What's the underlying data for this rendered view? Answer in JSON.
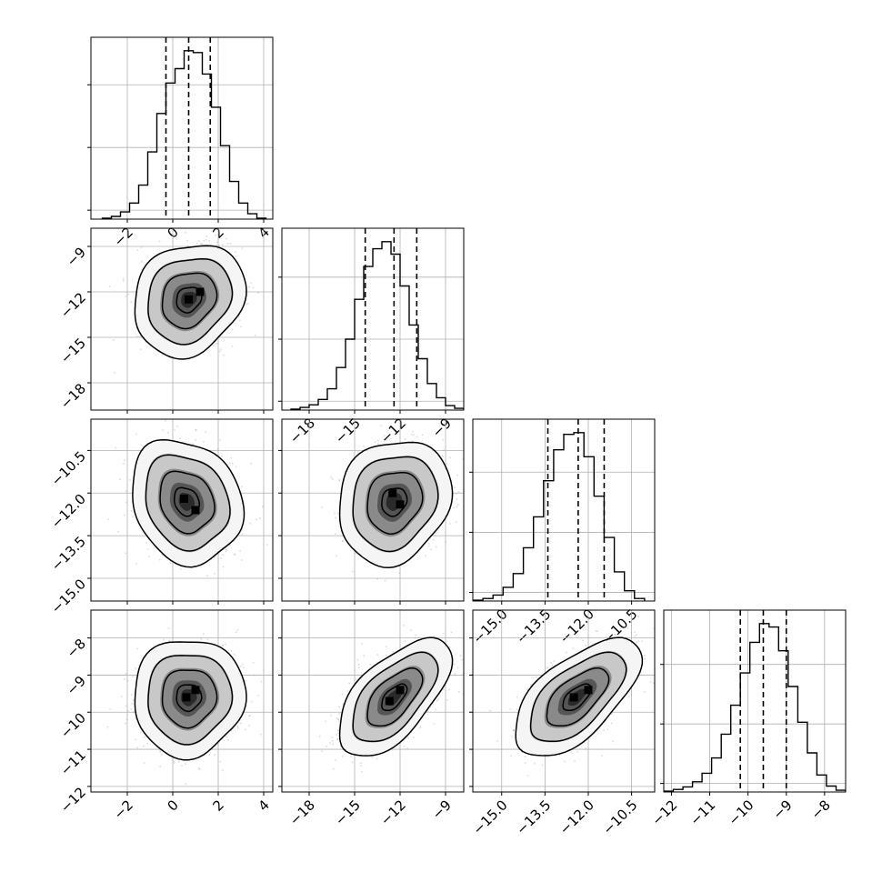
{
  "chart_data": [
    {
      "type": "histogram",
      "panel": [
        0,
        0
      ],
      "param": 0,
      "bins_x": [
        -3.1,
        -2.7,
        -2.3,
        -1.9,
        -1.5,
        -1.1,
        -0.7,
        -0.3,
        0.1,
        0.5,
        0.9,
        1.3,
        1.7,
        2.1,
        2.5,
        2.9,
        3.3,
        3.7,
        4.1
      ],
      "counts": [
        1,
        3,
        8,
        18,
        38,
        75,
        118,
        152,
        168,
        188,
        186,
        162,
        125,
        82,
        42,
        18,
        6,
        1
      ],
      "quantiles": [
        -0.3,
        0.7,
        1.65
      ],
      "xlim": [
        -3.6,
        4.4
      ],
      "xticks": [
        -2,
        0,
        2,
        4
      ],
      "xticklabels": [
        "−2",
        "0",
        "2",
        "4"
      ]
    },
    {
      "type": "scatter_density",
      "panel": [
        1,
        0
      ],
      "param_x": 0,
      "param_y": 1,
      "center": [
        0.7,
        -12.5
      ],
      "cov": [
        [
          1.0,
          0.25
        ],
        [
          0.25,
          2.3
        ]
      ],
      "n_scatter": 1500,
      "hotspots": [
        [
          0.7,
          -12.5
        ],
        [
          1.2,
          -12.0
        ]
      ],
      "xlim": [
        -3.6,
        4.4
      ],
      "ylim": [
        -19.8,
        -7.8
      ],
      "yticks": [
        -9,
        -12,
        -15,
        -18
      ],
      "yticklabels": [
        "−9",
        "−12",
        "−15",
        "−18"
      ]
    },
    {
      "type": "histogram",
      "panel": [
        1,
        1
      ],
      "param": 1,
      "bins_x": [
        -19.2,
        -18.6,
        -18.0,
        -17.4,
        -16.8,
        -16.2,
        -15.6,
        -15.0,
        -14.4,
        -13.8,
        -13.2,
        -12.6,
        -12.0,
        -11.4,
        -10.8,
        -10.2,
        -9.6,
        -9.0,
        -8.4,
        -7.8
      ],
      "counts": [
        1,
        3,
        6,
        12,
        24,
        48,
        80,
        125,
        162,
        182,
        190,
        176,
        140,
        96,
        58,
        30,
        14,
        5,
        2
      ],
      "quantiles": [
        -14.3,
        -12.4,
        -10.9
      ],
      "xlim": [
        -19.8,
        -7.8
      ],
      "xticks": [
        -18,
        -15,
        -12,
        -9
      ],
      "xticklabels": [
        "−18",
        "−15",
        "−12",
        "−9"
      ]
    },
    {
      "type": "scatter_density",
      "panel": [
        2,
        0
      ],
      "param_x": 0,
      "param_y": 2,
      "center": [
        0.6,
        -12.3
      ],
      "cov": [
        [
          1.0,
          -0.15
        ],
        [
          -0.15,
          0.8
        ]
      ],
      "n_scatter": 1500,
      "hotspots": [
        [
          0.5,
          -12.2
        ],
        [
          1.0,
          -12.6
        ]
      ],
      "xlim": [
        -3.6,
        4.4
      ],
      "ylim": [
        -15.8,
        -9.4
      ],
      "yticks": [
        -10.5,
        -12.0,
        -13.5,
        -15.0
      ],
      "yticklabels": [
        "−10.5",
        "−12.0",
        "−13.5",
        "−15.0"
      ]
    },
    {
      "type": "scatter_density",
      "panel": [
        2,
        1
      ],
      "param_x": 1,
      "param_y": 2,
      "center": [
        -12.4,
        -12.3
      ],
      "cov": [
        [
          2.3,
          0.2
        ],
        [
          0.2,
          0.8
        ]
      ],
      "n_scatter": 1500,
      "hotspots": [
        [
          -12.5,
          -12.0
        ],
        [
          -12.0,
          -12.4
        ]
      ],
      "xlim": [
        -19.8,
        -7.8
      ],
      "ylim": [
        -15.8,
        -9.4
      ]
    },
    {
      "type": "histogram",
      "panel": [
        2,
        2
      ],
      "param": 2,
      "bins_x": [
        -16.0,
        -15.65,
        -15.3,
        -14.95,
        -14.6,
        -14.25,
        -13.9,
        -13.55,
        -13.2,
        -12.85,
        -12.5,
        -12.15,
        -11.8,
        -11.45,
        -11.1,
        -10.75,
        -10.4,
        -10.05
      ],
      "counts": [
        1,
        3,
        7,
        16,
        32,
        62,
        98,
        140,
        176,
        194,
        196,
        168,
        122,
        74,
        34,
        12,
        3
      ],
      "quantiles": [
        -13.4,
        -12.35,
        -11.45
      ],
      "xlim": [
        -16.0,
        -9.7
      ],
      "xticks": [
        -15.0,
        -13.5,
        -12.0,
        -10.5
      ],
      "xticklabels": [
        "−15.0",
        "−13.5",
        "−12.0",
        "−10.5"
      ]
    },
    {
      "type": "scatter_density",
      "panel": [
        3,
        0
      ],
      "param_x": 0,
      "param_y": 3,
      "center": [
        0.7,
        -9.6
      ],
      "cov": [
        [
          1.0,
          0.02
        ],
        [
          0.02,
          0.42
        ]
      ],
      "n_scatter": 1500,
      "hotspots": [
        [
          0.6,
          -9.6
        ],
        [
          1.0,
          -9.4
        ]
      ],
      "xlim": [
        -3.6,
        4.4
      ],
      "ylim": [
        -12.15,
        -7.25
      ],
      "xticks": [
        -2,
        0,
        2,
        4
      ],
      "xticklabels": [
        "−2",
        "0",
        "2",
        "4"
      ],
      "yticks": [
        -8,
        -9,
        -10,
        -11,
        -12
      ],
      "yticklabels": [
        "−8",
        "−9",
        "−10",
        "−11",
        "−12"
      ]
    },
    {
      "type": "scatter_density",
      "panel": [
        3,
        1
      ],
      "param_x": 1,
      "param_y": 3,
      "center": [
        -12.4,
        -9.6
      ],
      "cov": [
        [
          2.3,
          0.6
        ],
        [
          0.6,
          0.42
        ]
      ],
      "n_scatter": 1500,
      "hotspots": [
        [
          -12.7,
          -9.7
        ],
        [
          -12.0,
          -9.4
        ]
      ],
      "xlim": [
        -19.8,
        -7.8
      ],
      "ylim": [
        -12.15,
        -7.25
      ],
      "xticks": [
        -18,
        -15,
        -12,
        -9
      ],
      "xticklabels": [
        "−18",
        "−15",
        "−12",
        "−9"
      ]
    },
    {
      "type": "scatter_density",
      "panel": [
        3,
        2
      ],
      "param_x": 2,
      "param_y": 3,
      "center": [
        -12.4,
        -9.6
      ],
      "cov": [
        [
          0.8,
          0.36
        ],
        [
          0.36,
          0.42
        ]
      ],
      "n_scatter": 1500,
      "hotspots": [
        [
          -12.5,
          -9.6
        ],
        [
          -12.0,
          -9.4
        ]
      ],
      "xlim": [
        -16.0,
        -9.7
      ],
      "ylim": [
        -12.15,
        -7.25
      ],
      "xticks": [
        -15.0,
        -13.5,
        -12.0,
        -10.5
      ],
      "xticklabels": [
        "−15.0",
        "−13.5",
        "−12.0",
        "−10.5"
      ]
    },
    {
      "type": "histogram",
      "panel": [
        3,
        3
      ],
      "param": 3,
      "bins_x": [
        -12.2,
        -11.95,
        -11.7,
        -11.45,
        -11.2,
        -10.95,
        -10.7,
        -10.45,
        -10.2,
        -9.95,
        -9.7,
        -9.45,
        -9.2,
        -8.95,
        -8.7,
        -8.45,
        -8.2,
        -7.95,
        -7.7,
        -7.45
      ],
      "counts": [
        1,
        3,
        6,
        12,
        22,
        40,
        68,
        102,
        140,
        176,
        198,
        194,
        166,
        124,
        82,
        46,
        20,
        7,
        2
      ],
      "quantiles": [
        -10.2,
        -9.6,
        -9.0
      ],
      "xlim": [
        -12.2,
        -7.45
      ],
      "xticks": [
        -12,
        -11,
        -10,
        -9,
        -8
      ],
      "xticklabels": [
        "−12",
        "−11",
        "−10",
        "−9",
        "−8"
      ]
    }
  ]
}
